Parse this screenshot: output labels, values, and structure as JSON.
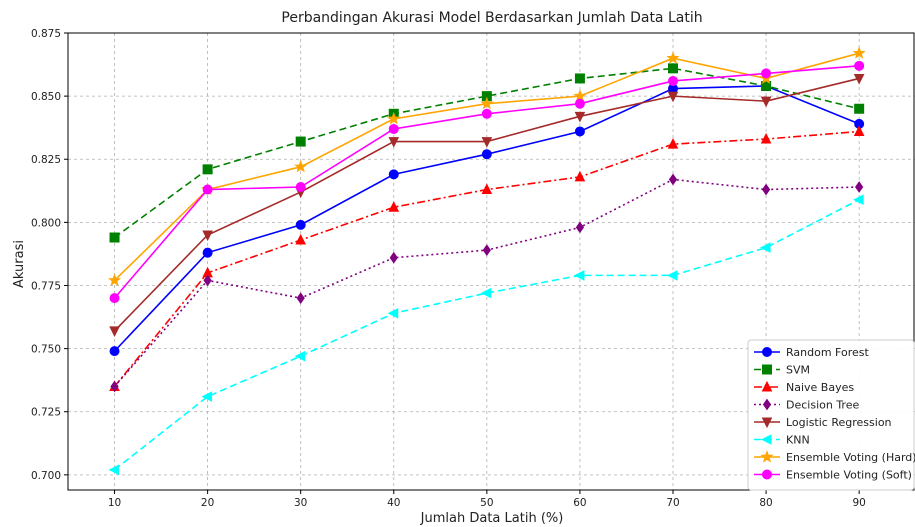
{
  "chart_data": {
    "type": "line",
    "title": "Perbandingan Akurasi Model Berdasarkan Jumlah Data Latih",
    "xlabel": "Jumlah Data Latih (%)",
    "ylabel": "Akurasi",
    "x": [
      10,
      20,
      30,
      40,
      50,
      60,
      70,
      80,
      90
    ],
    "xlim": [
      5,
      96
    ],
    "ylim": [
      0.694,
      0.875
    ],
    "xticks": [
      10,
      20,
      30,
      40,
      50,
      60,
      70,
      80,
      90
    ],
    "yticks": [
      0.7,
      0.725,
      0.75,
      0.775,
      0.8,
      0.825,
      0.85,
      0.875
    ],
    "grid": true,
    "legend_position": "lower-right",
    "series": [
      {
        "name": "Random Forest",
        "color": "#0000ff",
        "dash": "solid",
        "marker": "circle",
        "values": [
          0.749,
          0.788,
          0.799,
          0.819,
          0.827,
          0.836,
          0.853,
          0.854,
          0.839
        ]
      },
      {
        "name": "SVM",
        "color": "#008000",
        "dash": "dashed",
        "marker": "square",
        "values": [
          0.794,
          0.821,
          0.832,
          0.843,
          0.85,
          0.857,
          0.861,
          0.854,
          0.845
        ]
      },
      {
        "name": "Naive Bayes",
        "color": "#ff0000",
        "dash": "dashdot",
        "marker": "triangle-up",
        "values": [
          0.735,
          0.78,
          0.793,
          0.806,
          0.813,
          0.818,
          0.831,
          0.833,
          0.836
        ]
      },
      {
        "name": "Decision Tree",
        "color": "#800080",
        "dash": "dotted",
        "marker": "diamond",
        "values": [
          0.735,
          0.777,
          0.77,
          0.786,
          0.789,
          0.798,
          0.817,
          0.813,
          0.814
        ]
      },
      {
        "name": "Logistic Regression",
        "color": "#a52a2a",
        "dash": "solid",
        "marker": "triangle-down",
        "values": [
          0.757,
          0.795,
          0.812,
          0.832,
          0.832,
          0.842,
          0.85,
          0.848,
          0.857
        ]
      },
      {
        "name": "KNN",
        "color": "#00ffff",
        "dash": "dashed",
        "marker": "triangle-left",
        "values": [
          0.702,
          0.731,
          0.747,
          0.764,
          0.772,
          0.779,
          0.779,
          0.79,
          0.809
        ]
      },
      {
        "name": "Ensemble Voting (Hard)",
        "color": "#ffa500",
        "dash": "solid",
        "marker": "star",
        "values": [
          0.777,
          0.813,
          0.822,
          0.841,
          0.847,
          0.85,
          0.865,
          0.857,
          0.867
        ]
      },
      {
        "name": "Ensemble Voting (Soft)",
        "color": "#ff00ff",
        "dash": "solid",
        "marker": "circle",
        "values": [
          0.77,
          0.813,
          0.814,
          0.837,
          0.843,
          0.847,
          0.856,
          0.859,
          0.862
        ]
      }
    ]
  }
}
